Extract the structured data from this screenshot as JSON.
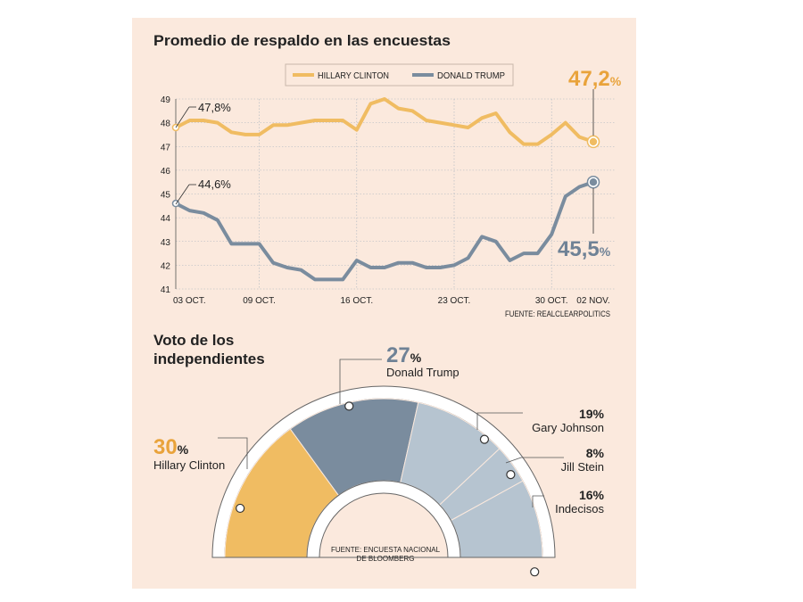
{
  "colors": {
    "background": "#fbe9dd",
    "clinton": "#f0bc62",
    "trump": "#7a8c9e",
    "clinton_text": "#e9a33b",
    "trump_text": "#6f8296",
    "johnson": "#b6c4d0",
    "stein": "#b6c4d0",
    "undecided": "#b6c4d0",
    "gridline": "#aab4be",
    "text": "#222222"
  },
  "chart_data": [
    {
      "type": "line",
      "title": "Promedio de respaldo en las encuestas",
      "source": "FUENTE: REALCLEARPOLITICS",
      "x_tick_labels": [
        "03 OCT.",
        "09 OCT.",
        "16 OCT.",
        "23 OCT.",
        "30 OCT.",
        "02 NOV."
      ],
      "x_tick_index": [
        0,
        6,
        13,
        20,
        27,
        30
      ],
      "ylim": [
        41,
        49
      ],
      "yticks": [
        41,
        42,
        43,
        44,
        45,
        46,
        47,
        48,
        49
      ],
      "legend": [
        "HILLARY CLINTON",
        "DONALD TRUMP"
      ],
      "series": [
        {
          "name": "HILLARY CLINTON",
          "start_label": "47,8%",
          "end_label_number": "47,2",
          "end_label_unit": "%",
          "values": [
            47.8,
            48.1,
            48.1,
            48.0,
            47.6,
            47.5,
            47.5,
            47.9,
            47.9,
            48.0,
            48.1,
            48.1,
            48.1,
            47.7,
            48.8,
            49.0,
            48.6,
            48.5,
            48.1,
            48.0,
            47.9,
            47.8,
            48.2,
            48.4,
            47.6,
            47.1,
            47.1,
            47.5,
            48.0,
            47.4,
            47.2
          ]
        },
        {
          "name": "DONALD TRUMP",
          "start_label": "44,6%",
          "end_label_number": "45,5",
          "end_label_unit": "%",
          "values": [
            44.6,
            44.3,
            44.2,
            43.9,
            42.9,
            42.9,
            42.9,
            42.1,
            41.9,
            41.8,
            41.4,
            41.4,
            41.4,
            42.2,
            41.9,
            41.9,
            42.1,
            42.1,
            41.9,
            41.9,
            42.0,
            42.3,
            43.2,
            43.0,
            42.2,
            42.5,
            42.5,
            43.3,
            44.9,
            45.3,
            45.5
          ]
        }
      ]
    },
    {
      "type": "pie",
      "title_line1": "Voto de los",
      "title_line2": "independientes",
      "source_line1": "FUENTE: ENCUESTA NACIONAL",
      "source_line2": "DE BLOOMBERG",
      "unit": "%",
      "slices": [
        {
          "name": "Hillary Clinton",
          "value": 30
        },
        {
          "name": "Donald Trump",
          "value": 27
        },
        {
          "name": "Gary Johnson",
          "value": 19
        },
        {
          "name": "Jill Stein",
          "value": 8
        },
        {
          "name": "Indecisos",
          "value": 16
        }
      ]
    }
  ]
}
